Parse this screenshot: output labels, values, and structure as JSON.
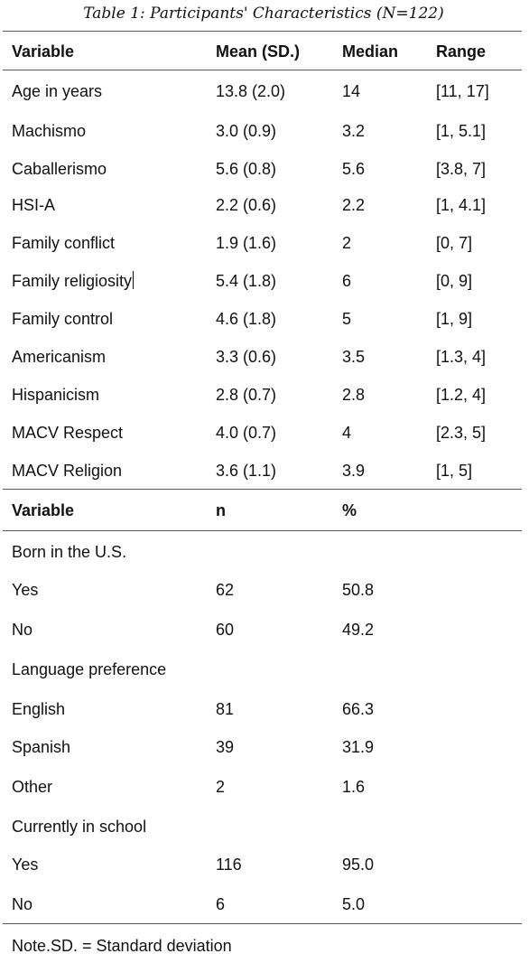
{
  "caption": "Table 1: Participants' Characteristics (N=122)",
  "continuous": {
    "headers": [
      "Variable",
      "Mean (SD.)",
      "Median",
      "Range"
    ],
    "rows": [
      [
        "Age in years",
        "13.8 (2.0)",
        "14",
        "[11, 17]"
      ],
      [
        "Machismo",
        "3.0 (0.9)",
        "3.2",
        "[1, 5.1]"
      ],
      [
        "Caballerismo",
        "5.6 (0.8)",
        "5.6",
        "[3.8, 7]"
      ],
      [
        "HSI-A",
        "2.2 (0.6)",
        "2.2",
        "[1, 4.1]"
      ],
      [
        "Family conflict",
        "1.9 (1.6)",
        "2",
        "[0, 7]"
      ],
      [
        "Family religiosity",
        "5.4 (1.8)",
        "6",
        "[0, 9]"
      ],
      [
        "Family control",
        "4.6 (1.8)",
        "5",
        "[1, 9]"
      ],
      [
        "Americanism",
        "3.3 (0.6)",
        "3.5",
        "[1.3, 4]"
      ],
      [
        "Hispanicism",
        "2.8 (0.7)",
        "2.8",
        "[1.2, 4]"
      ],
      [
        "MACV Respect",
        "4.0 (0.7)",
        "4",
        "[2.3, 5]"
      ],
      [
        "MACV Religion",
        "3.6 (1.1)",
        "3.9",
        "[1, 5]"
      ]
    ]
  },
  "categorical": {
    "headers": [
      "Variable",
      "n",
      "%"
    ],
    "rows": [
      [
        "Born in the U.S.",
        "",
        ""
      ],
      [
        "Yes",
        "62",
        "50.8"
      ],
      [
        "No",
        "60",
        "49.2"
      ],
      [
        "Language preference",
        "",
        ""
      ],
      [
        "English",
        "81",
        "66.3"
      ],
      [
        "Spanish",
        "39",
        "31.9"
      ],
      [
        "Other",
        "2",
        "1.6"
      ],
      [
        "Currently in school",
        "",
        ""
      ],
      [
        "Yes",
        "116",
        "95.0"
      ],
      [
        "No",
        "6",
        "5.0"
      ]
    ]
  },
  "note": "Note.SD. = Standard deviation"
}
